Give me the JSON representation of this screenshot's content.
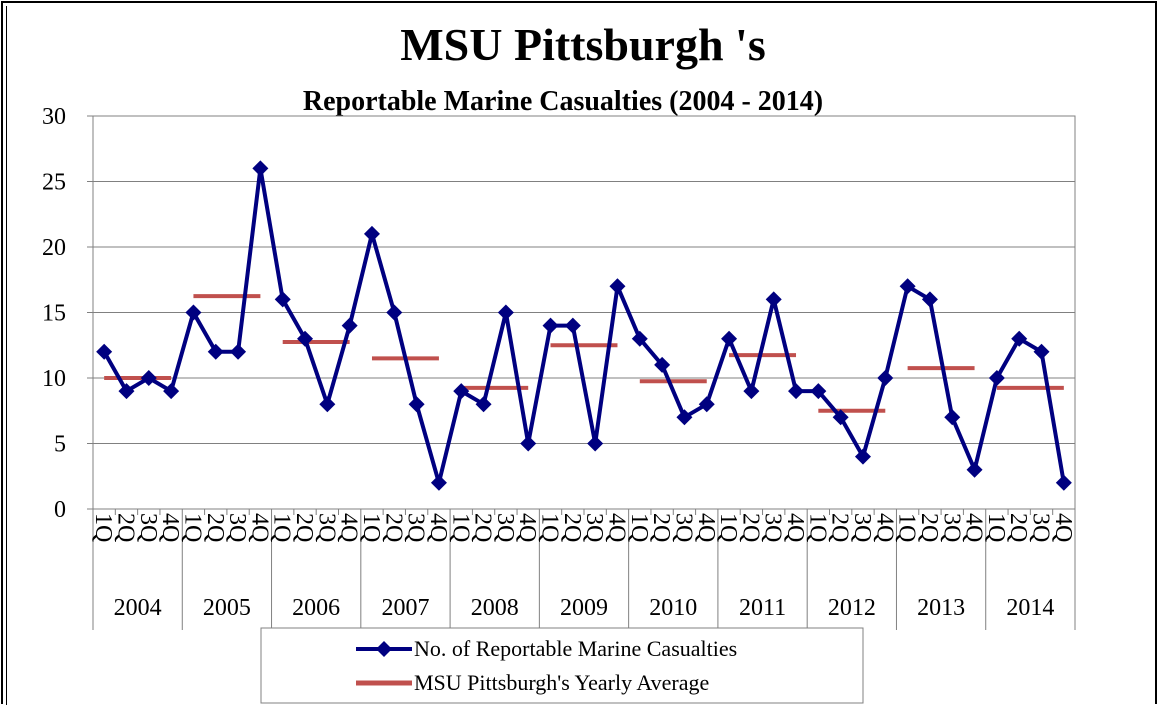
{
  "chart_data": {
    "type": "line",
    "title": "MSU Pittsburgh 's",
    "subtitle": "Reportable Marine Casualties (2004 - 2014)",
    "ylim": [
      0,
      30
    ],
    "y_ticks": [
      "0",
      "5",
      "10",
      "15",
      "20",
      "25",
      "30"
    ],
    "years": [
      "2004",
      "2005",
      "2006",
      "2007",
      "2008",
      "2009",
      "2010",
      "2011",
      "2012",
      "2013",
      "2014"
    ],
    "quarter_labels": [
      "1Q",
      "2Q",
      "3Q",
      "4Q"
    ],
    "grid": "horizontal",
    "legend_placement": "bottom",
    "series": [
      {
        "name": "No. of Reportable Marine Casualties",
        "color": "#000080",
        "marker": "diamond",
        "values": [
          12,
          9,
          10,
          9,
          15,
          12,
          12,
          26,
          16,
          13,
          8,
          14,
          21,
          15,
          8,
          2,
          9,
          8,
          15,
          5,
          14,
          14,
          5,
          17,
          13,
          11,
          7,
          8,
          13,
          9,
          16,
          9,
          9,
          7,
          4,
          10,
          17,
          16,
          7,
          3,
          10,
          13,
          12,
          2
        ]
      },
      {
        "name": "MSU Pittsburgh's Yearly Average",
        "color": "#C0504D",
        "style": "yearly-segments",
        "values": [
          10,
          16.25,
          12.75,
          11.5,
          9.25,
          12.5,
          9.75,
          11.75,
          7.5,
          10.75,
          9.25
        ]
      }
    ]
  }
}
